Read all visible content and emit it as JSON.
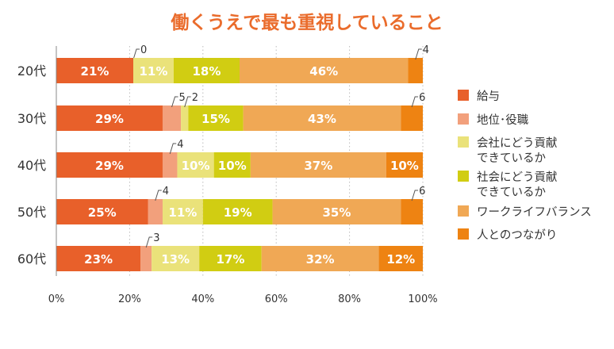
{
  "chart_data": {
    "type": "bar",
    "orientation": "horizontal",
    "stacked": true,
    "percent": true,
    "title": "働くうえで最も重視していること",
    "categories": [
      "20代",
      "30代",
      "40代",
      "50代",
      "60代"
    ],
    "series": [
      {
        "name": "給与",
        "lines": [
          "給与"
        ],
        "color": "#e8602a",
        "values": [
          21,
          29,
          29,
          25,
          23
        ]
      },
      {
        "name": "地位･役職",
        "lines": [
          "地位･役職"
        ],
        "color": "#f2a07c",
        "values": [
          0,
          5,
          4,
          4,
          3
        ]
      },
      {
        "name": "会社にどう貢献できているか",
        "lines": [
          "会社にどう貢献",
          "できているか"
        ],
        "color": "#eae27a",
        "values": [
          11,
          2,
          10,
          11,
          13
        ]
      },
      {
        "name": "社会にどう貢献できているか",
        "lines": [
          "社会にどう貢献",
          "できているか"
        ],
        "color": "#d1cd12",
        "values": [
          18,
          15,
          10,
          19,
          17
        ]
      },
      {
        "name": "ワークライフバランス",
        "lines": [
          "ワークライフバランス"
        ],
        "color": "#f0a855",
        "values": [
          46,
          43,
          37,
          35,
          32
        ]
      },
      {
        "name": "人とのつながり",
        "lines": [
          "人とのつながり"
        ],
        "color": "#ee8312",
        "values": [
          4,
          6,
          10,
          6,
          12
        ]
      }
    ],
    "labels": [
      [
        "21%",
        "0",
        "11%",
        "18%",
        "46%",
        "4"
      ],
      [
        "29%",
        "5",
        "2",
        "15%",
        "43%",
        "6"
      ],
      [
        "29%",
        "4",
        "10%",
        "10%",
        "37%",
        "10%"
      ],
      [
        "25%",
        "4",
        "11%",
        "19%",
        "35%",
        "6"
      ],
      [
        "23%",
        "3",
        "13%",
        "17%",
        "32%",
        "12%"
      ]
    ],
    "xlim": [
      0,
      100
    ],
    "xticks": [
      0,
      20,
      40,
      60,
      80,
      100
    ],
    "xtick_labels": [
      "0%",
      "20%",
      "40%",
      "60%",
      "80%",
      "100%"
    ],
    "grid": "vertical dotted",
    "legend": "right"
  },
  "colors": {
    "title": "#ea6c2c",
    "axis": "#888888",
    "grid": "#bbbbbb"
  }
}
